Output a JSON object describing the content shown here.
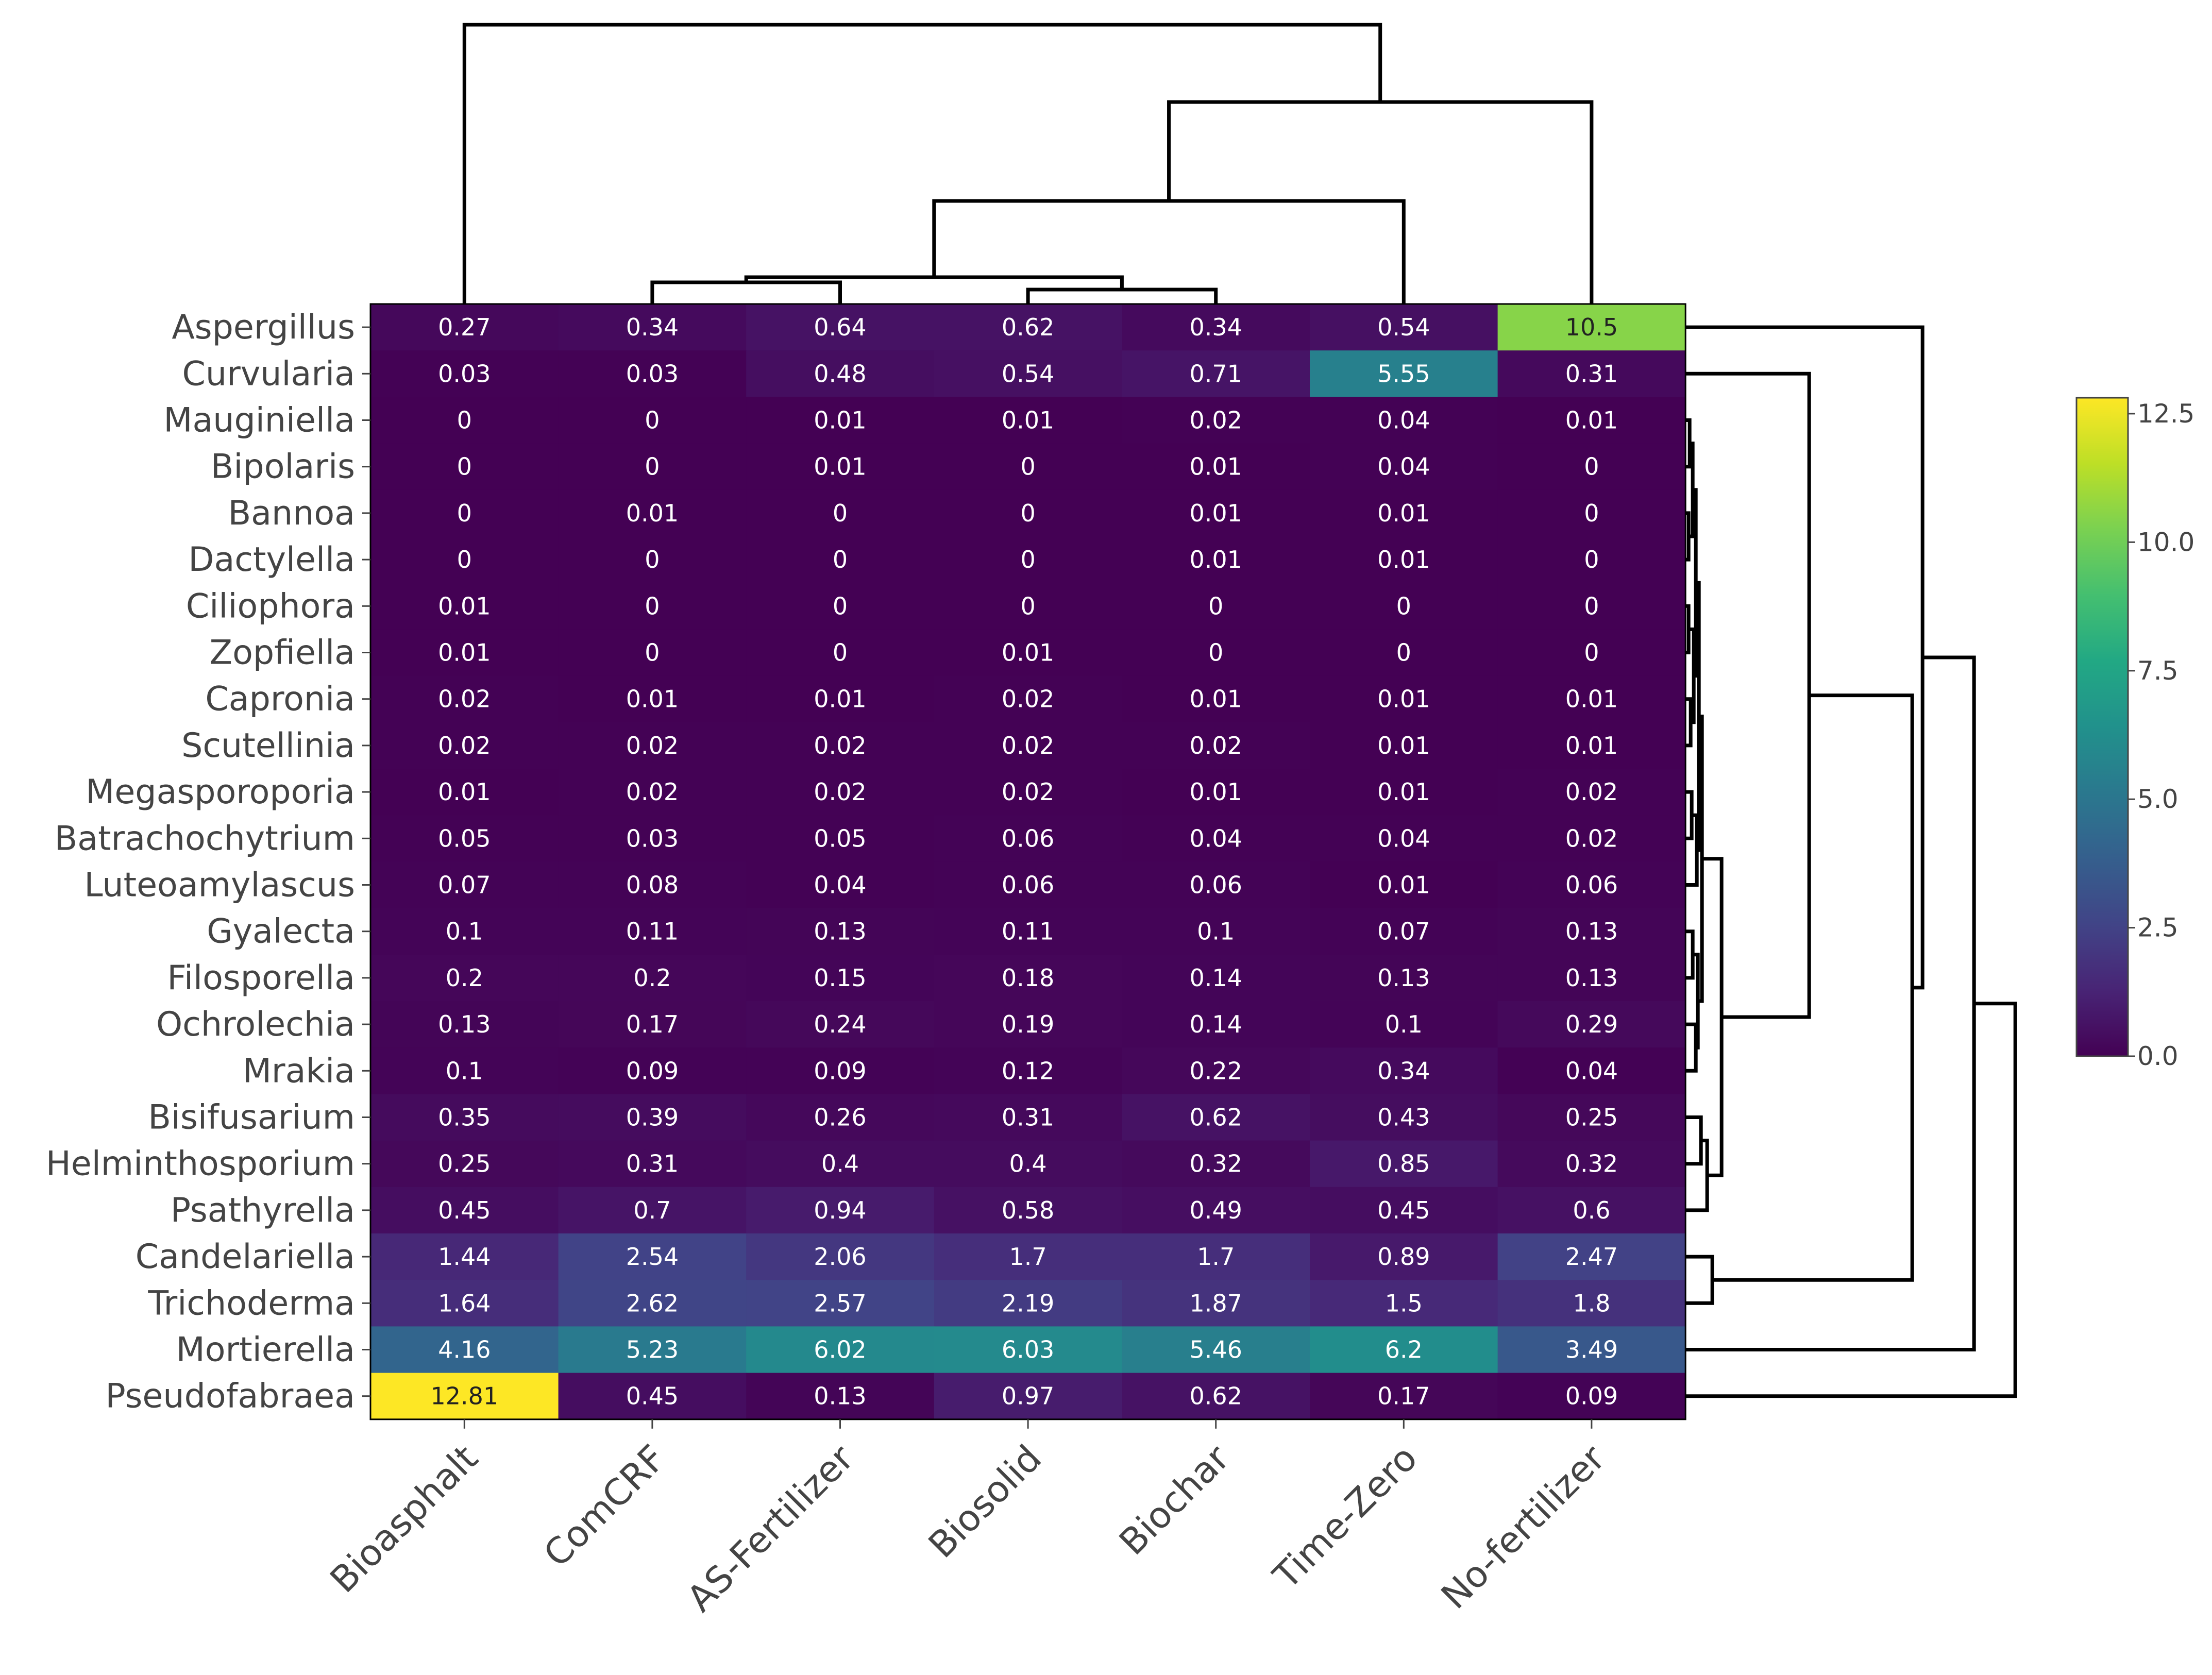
{
  "chart_data": {
    "type": "heatmap",
    "title": "",
    "xlabel": "",
    "ylabel": "",
    "columns": [
      "Bioasphalt",
      "ComCRF",
      "AS-Fertilizer",
      "Biosolid",
      "Biochar",
      "Time-Zero",
      "No-fertilizer"
    ],
    "rows": [
      "Aspergillus",
      "Curvularia",
      "Mauginiella",
      "Bipolaris",
      "Bannoa",
      "Dactylella",
      "Ciliophora",
      "Zopfiella",
      "Capronia",
      "Scutellinia",
      "Megasporoporia",
      "Batrachochytrium",
      "Luteoamylascus",
      "Gyalecta",
      "Filosporella",
      "Ochrolechia",
      "Mrakia",
      "Bisifusarium",
      "Helminthosporium",
      "Psathyrella",
      "Candelariella",
      "Trichoderma",
      "Mortierella",
      "Pseudofabraea"
    ],
    "values": [
      [
        0.27,
        0.34,
        0.64,
        0.62,
        0.34,
        0.54,
        10.5
      ],
      [
        0.03,
        0.03,
        0.48,
        0.54,
        0.71,
        5.55,
        0.31
      ],
      [
        0,
        0,
        0.01,
        0.01,
        0.02,
        0.04,
        0.01
      ],
      [
        0,
        0,
        0.01,
        0,
        0.01,
        0.04,
        0
      ],
      [
        0,
        0.01,
        0,
        0,
        0.01,
        0.01,
        0
      ],
      [
        0,
        0,
        0,
        0,
        0.01,
        0.01,
        0
      ],
      [
        0.01,
        0,
        0,
        0,
        0,
        0,
        0
      ],
      [
        0.01,
        0,
        0,
        0.01,
        0,
        0,
        0
      ],
      [
        0.02,
        0.01,
        0.01,
        0.02,
        0.01,
        0.01,
        0.01
      ],
      [
        0.02,
        0.02,
        0.02,
        0.02,
        0.02,
        0.01,
        0.01
      ],
      [
        0.01,
        0.02,
        0.02,
        0.02,
        0.01,
        0.01,
        0.02
      ],
      [
        0.05,
        0.03,
        0.05,
        0.06,
        0.04,
        0.04,
        0.02
      ],
      [
        0.07,
        0.08,
        0.04,
        0.06,
        0.06,
        0.01,
        0.06
      ],
      [
        0.1,
        0.11,
        0.13,
        0.11,
        0.1,
        0.07,
        0.13
      ],
      [
        0.2,
        0.2,
        0.15,
        0.18,
        0.14,
        0.13,
        0.13
      ],
      [
        0.13,
        0.17,
        0.24,
        0.19,
        0.14,
        0.1,
        0.29
      ],
      [
        0.1,
        0.09,
        0.09,
        0.12,
        0.22,
        0.34,
        0.04
      ],
      [
        0.35,
        0.39,
        0.26,
        0.31,
        0.62,
        0.43,
        0.25
      ],
      [
        0.25,
        0.31,
        0.4,
        0.4,
        0.32,
        0.85,
        0.32
      ],
      [
        0.45,
        0.7,
        0.94,
        0.58,
        0.49,
        0.45,
        0.6
      ],
      [
        1.44,
        2.54,
        2.06,
        1.7,
        1.7,
        0.89,
        2.47
      ],
      [
        1.64,
        2.62,
        2.57,
        2.19,
        1.87,
        1.5,
        1.8
      ],
      [
        4.16,
        5.23,
        6.02,
        6.03,
        5.46,
        6.2,
        3.49
      ],
      [
        12.81,
        0.45,
        0.13,
        0.97,
        0.62,
        0.17,
        0.09
      ]
    ],
    "colorscale": "viridis",
    "zmin": 0,
    "zmax": 12.81,
    "colorbar_ticks": [
      0,
      2.5,
      5,
      7.5,
      10,
      12.5
    ],
    "colorbar_tick_labels": [
      "0.0",
      "2.5",
      "5.0",
      "7.5",
      "10.0",
      "12.5"
    ],
    "column_dendrogram": true,
    "row_dendrogram": true
  }
}
